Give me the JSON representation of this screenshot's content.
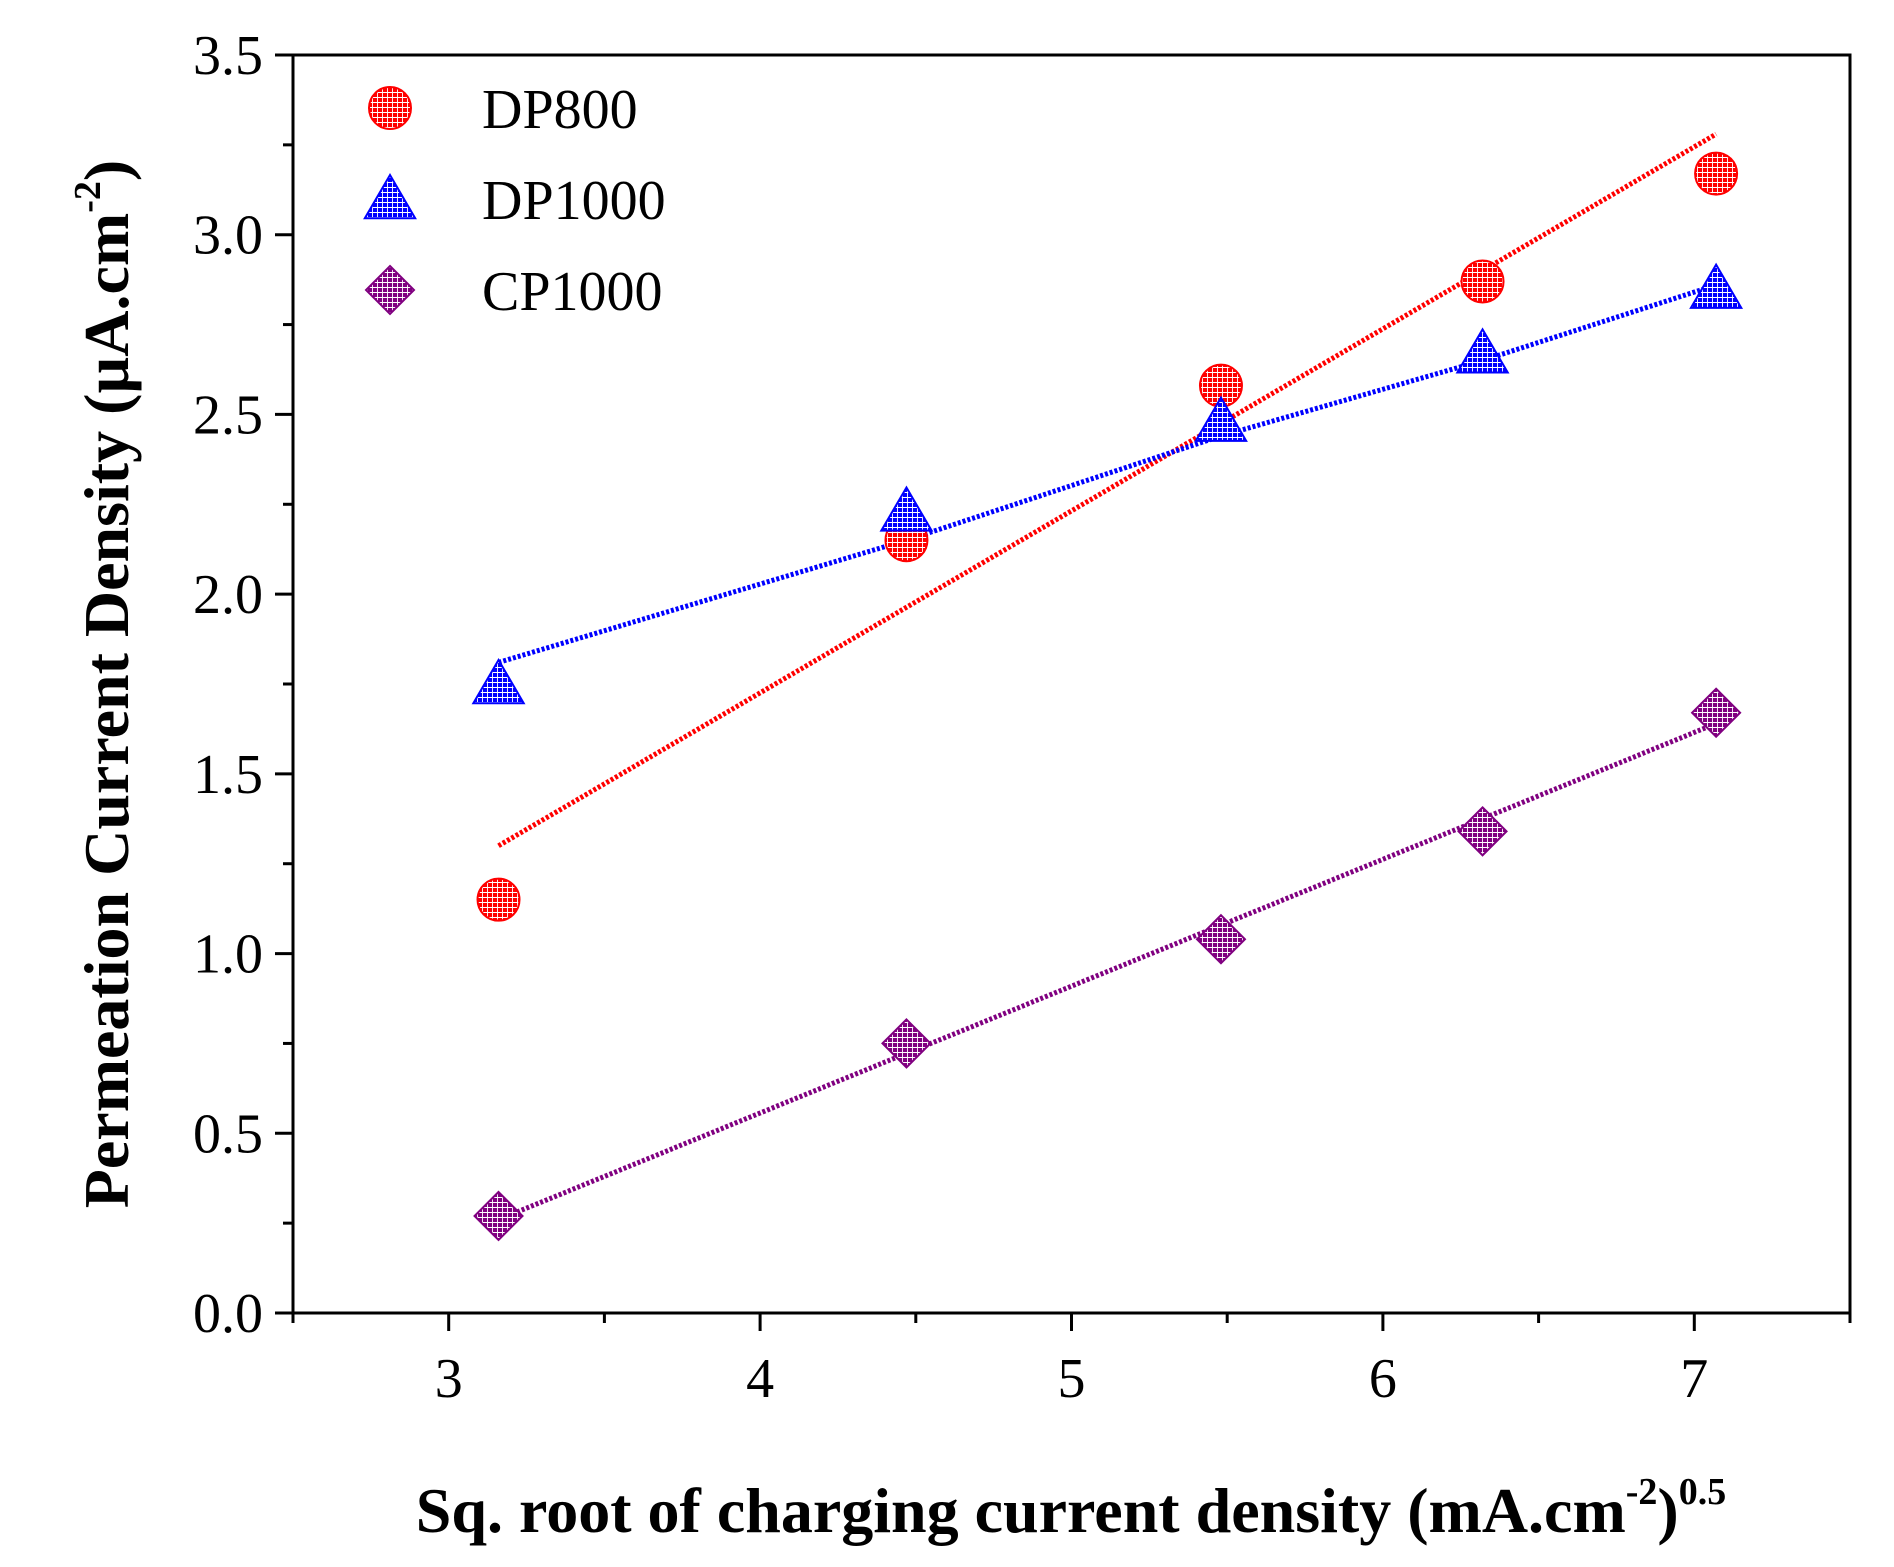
{
  "chart_data": {
    "type": "scatter",
    "title": "",
    "xlabel": {
      "main": "Sq. root of charging current density (mA.cm",
      "sup1": "-2",
      "close": ")",
      "sup2": "0.5"
    },
    "ylabel": {
      "main": "Permeation Current Density (µA.cm",
      "sup": "-2",
      "close": ")"
    },
    "xlim": [
      2.5,
      7.5
    ],
    "ylim": [
      0.0,
      3.5
    ],
    "x_ticks": [
      3,
      4,
      5,
      6,
      7
    ],
    "x_tick_labels": [
      "3",
      "4",
      "5",
      "6",
      "7"
    ],
    "y_ticks": [
      0.0,
      0.5,
      1.0,
      1.5,
      2.0,
      2.5,
      3.0,
      3.5
    ],
    "y_tick_labels": [
      "0.0",
      "0.5",
      "1.0",
      "1.5",
      "2.0",
      "2.5",
      "3.0",
      "3.5"
    ],
    "grid": false,
    "legend_position": "top-left",
    "series": [
      {
        "name": "DP800",
        "color": "#ff0000",
        "marker": "circle",
        "x": [
          3.16,
          4.47,
          5.48,
          6.32,
          7.07
        ],
        "y": [
          1.15,
          2.15,
          2.58,
          2.87,
          3.17
        ],
        "fit": {
          "x": [
            3.16,
            7.07
          ],
          "y": [
            1.3,
            3.28
          ]
        }
      },
      {
        "name": "DP1000",
        "color": "#0000ff",
        "marker": "triangle",
        "x": [
          3.16,
          4.47,
          5.48,
          6.32,
          7.07
        ],
        "y": [
          1.75,
          2.23,
          2.48,
          2.67,
          2.85
        ],
        "fit": {
          "x": [
            3.16,
            4.47,
            5.48,
            6.32,
            7.07
          ],
          "y": [
            1.81,
            2.15,
            2.44,
            2.65,
            2.86
          ]
        }
      },
      {
        "name": "CP1000",
        "color": "#800080",
        "marker": "diamond",
        "x": [
          3.16,
          4.47,
          5.48,
          6.32,
          7.07
        ],
        "y": [
          0.27,
          0.75,
          1.04,
          1.34,
          1.67
        ],
        "fit": {
          "x": [
            3.16,
            7.07
          ],
          "y": [
            0.26,
            1.64
          ]
        }
      }
    ]
  }
}
